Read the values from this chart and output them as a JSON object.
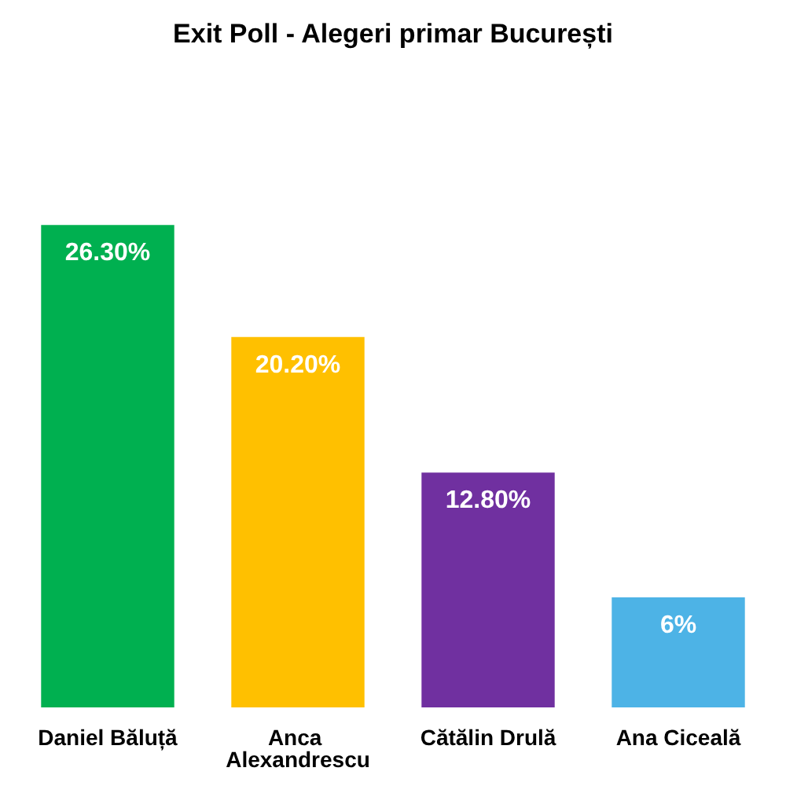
{
  "chart_data": {
    "type": "bar",
    "title": "Exit Poll - Alegeri primar București",
    "categories": [
      "Daniel Băluță",
      "Anca Alexandrescu",
      "Cătălin Drulă",
      "Ana Ciceală"
    ],
    "values": [
      26.3,
      20.2,
      12.8,
      6
    ],
    "colors": [
      "#00b050",
      "#ffc000",
      "#7030a0",
      "#4db3e6"
    ],
    "value_labels": [
      "26.30%",
      "20.20%",
      "12.80%",
      "6%"
    ]
  }
}
